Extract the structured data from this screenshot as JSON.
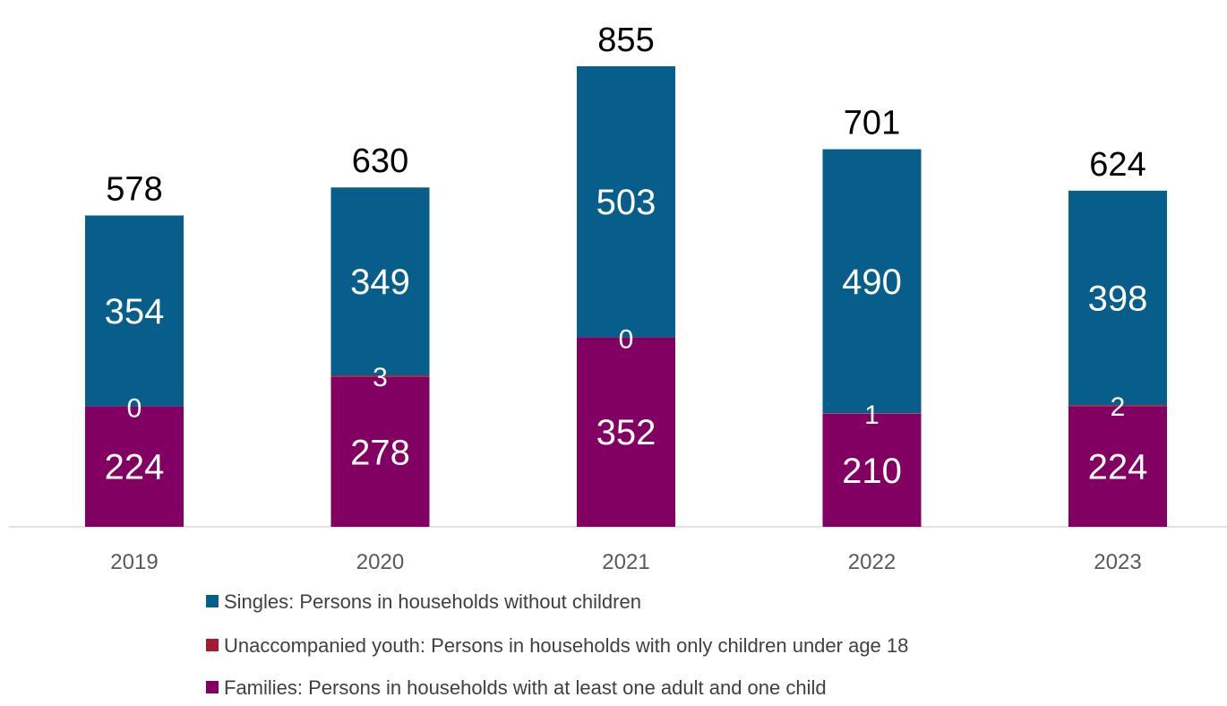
{
  "chart_data": {
    "type": "bar",
    "stacked": true,
    "categories": [
      "2019",
      "2020",
      "2021",
      "2022",
      "2023"
    ],
    "series": [
      {
        "name": "Families: Persons in households with at least one adult and one child",
        "values": [
          224,
          278,
          352,
          210,
          224
        ],
        "color": "#820062"
      },
      {
        "name": "Unaccompanied youth: Persons in households with only children under age 18",
        "values": [
          0,
          3,
          0,
          1,
          2
        ],
        "color": "#a51c30"
      },
      {
        "name": "Singles: Persons in households without children",
        "values": [
          354,
          349,
          503,
          490,
          398
        ],
        "color": "#075e8a"
      }
    ],
    "totals": [
      578,
      630,
      855,
      701,
      624
    ],
    "legend_order": [
      2,
      1,
      0
    ],
    "legend_position": "bottom",
    "grid": false,
    "ylim": [
      0,
      900
    ]
  }
}
